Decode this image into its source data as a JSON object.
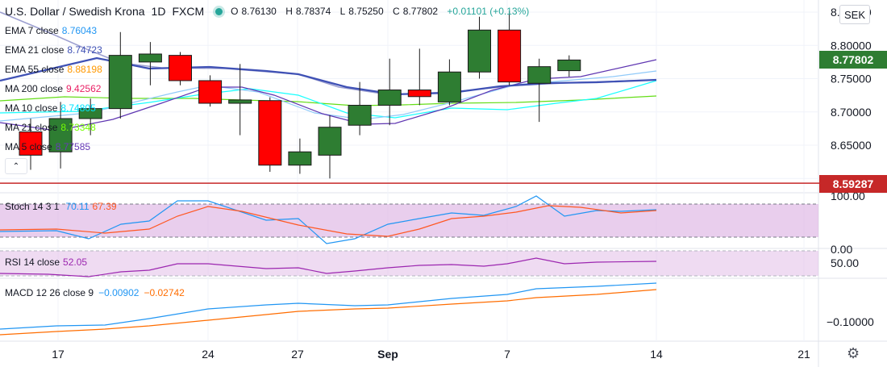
{
  "header": {
    "title": "U.S. Dollar / Swedish Krona",
    "interval": "1D",
    "exchange": "FXCM",
    "open_label": "O",
    "open": "8.76130",
    "high_label": "H",
    "high": "8.78374",
    "low_label": "L",
    "low": "8.75250",
    "close_label": "C",
    "close": "8.77802",
    "change": "+0.01101 (+0.13%)"
  },
  "currency_button": "SEK",
  "collapse_icon": "chevron-up-icon",
  "settings_icon": "gear-icon",
  "indicators": [
    {
      "label": "EMA 7 close",
      "value": "8.76043",
      "color": "#2196f3"
    },
    {
      "label": "EMA 21 close",
      "value": "8.74723",
      "color": "#3f51b5"
    },
    {
      "label": "EMA 55 close",
      "value": "8.88198",
      "color": "#ff9800"
    },
    {
      "label": "MA 200 close",
      "value": "9.42562",
      "color": "#e91e63"
    },
    {
      "label": "MA 10 close",
      "value": "8.74805",
      "color": "#00e5ff"
    },
    {
      "label": "MA 21 close",
      "value": "8.73348",
      "color": "#76ff03"
    },
    {
      "label": "MA 5 close",
      "value": "8.77585",
      "color": "#673ab7"
    }
  ],
  "stoch": {
    "label": "Stoch 14 3 1",
    "k": "70.11",
    "d": "67.39",
    "k_color": "#2196f3",
    "d_color": "#ff5722"
  },
  "rsi": {
    "label": "RSI 14 close",
    "value": "52.05",
    "color": "#9c27b0"
  },
  "macd": {
    "label": "MACD 12 26 close 9",
    "macd": "−0.00902",
    "signal": "−0.02742",
    "macd_color": "#2196f3",
    "signal_color": "#ff6d00"
  },
  "price_axis": {
    "ticks": [
      "8.85000",
      "8.80000",
      "8.75000",
      "8.70000",
      "8.65000",
      "8.60000"
    ],
    "current_label": "8.77802",
    "current_color": "#2e7d32",
    "hline_label": "8.59287",
    "hline_color": "#c62828"
  },
  "stoch_axis": [
    "100.00",
    "0.00"
  ],
  "rsi_axis": [
    "50.00"
  ],
  "macd_axis": [
    "−0.10000"
  ],
  "time_axis": [
    "17",
    "24",
    "27",
    "Sep",
    "7",
    "14",
    "21"
  ],
  "chart_data": {
    "type": "candlestick",
    "symbol": "USDSEK",
    "candles": [
      {
        "o": 8.67,
        "h": 8.69,
        "l": 8.613,
        "c": 8.635
      },
      {
        "o": 8.64,
        "h": 8.715,
        "l": 8.615,
        "c": 8.69
      },
      {
        "o": 8.69,
        "h": 8.72,
        "l": 8.665,
        "c": 8.705
      },
      {
        "o": 8.705,
        "h": 8.82,
        "l": 8.69,
        "c": 8.785
      },
      {
        "o": 8.775,
        "h": 8.805,
        "l": 8.74,
        "c": 8.787
      },
      {
        "o": 8.785,
        "h": 8.79,
        "l": 8.74,
        "c": 8.747
      },
      {
        "o": 8.747,
        "h": 8.755,
        "l": 8.708,
        "c": 8.713
      },
      {
        "o": 8.713,
        "h": 8.772,
        "l": 8.665,
        "c": 8.718
      },
      {
        "o": 8.717,
        "h": 8.722,
        "l": 8.61,
        "c": 8.62
      },
      {
        "o": 8.62,
        "h": 8.66,
        "l": 8.607,
        "c": 8.64
      },
      {
        "o": 8.635,
        "h": 8.695,
        "l": 8.6,
        "c": 8.677
      },
      {
        "o": 8.68,
        "h": 8.745,
        "l": 8.665,
        "c": 8.71
      },
      {
        "o": 8.71,
        "h": 8.78,
        "l": 8.68,
        "c": 8.733
      },
      {
        "o": 8.733,
        "h": 8.795,
        "l": 8.71,
        "c": 8.723
      },
      {
        "o": 8.715,
        "h": 8.779,
        "l": 8.71,
        "c": 8.76
      },
      {
        "o": 8.76,
        "h": 8.843,
        "l": 8.75,
        "c": 8.823
      },
      {
        "o": 8.823,
        "h": 8.852,
        "l": 8.74,
        "c": 8.745
      },
      {
        "o": 8.743,
        "h": 8.78,
        "l": 8.685,
        "c": 8.768
      },
      {
        "o": 8.762,
        "h": 8.785,
        "l": 8.753,
        "c": 8.778
      }
    ],
    "ylim": [
      8.59,
      8.87
    ],
    "hline": 8.59287
  }
}
